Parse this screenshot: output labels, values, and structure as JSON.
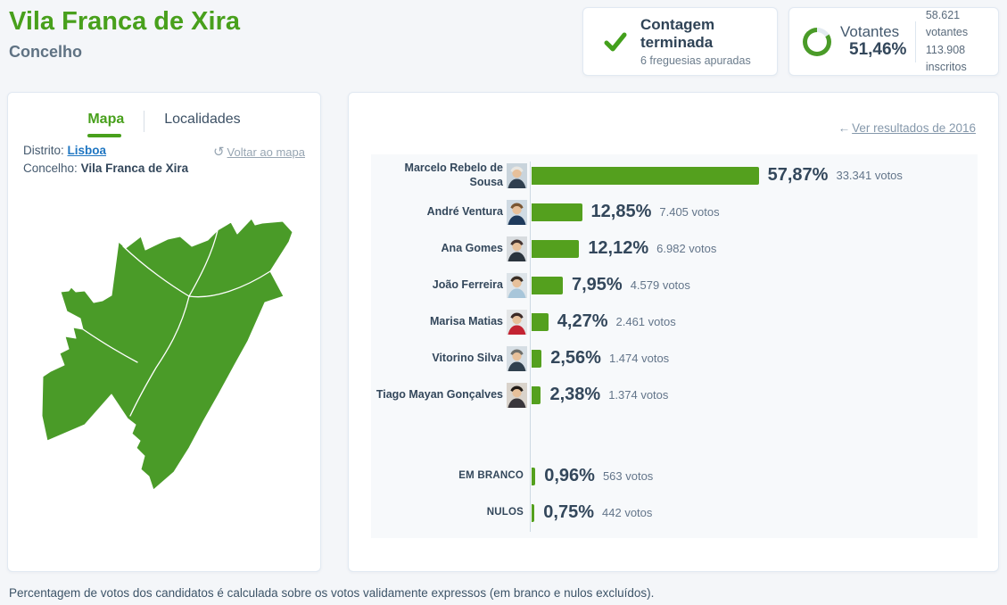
{
  "header": {
    "title": "Vila Franca de Xira",
    "subtitle": "Concelho"
  },
  "status_card": {
    "title": "Contagem terminada",
    "subtitle": "6 freguesias apuradas",
    "icon": "checkmark-icon"
  },
  "turnout_card": {
    "label": "Votantes",
    "percent_label": "51,46%",
    "percent_value": 51.46,
    "voters_line": "58.621 votantes",
    "registered_line": "113.908 inscritos"
  },
  "map_panel": {
    "tabs": [
      {
        "label": "Mapa",
        "active": true
      },
      {
        "label": "Localidades",
        "active": false
      }
    ],
    "district_label": "Distrito:",
    "district_value": "Lisboa",
    "council_label": "Concelho:",
    "council_value": "Vila Franca de Xira",
    "back_link": "Voltar ao mapa",
    "back_icon": "undo-arrow-icon"
  },
  "results_panel": {
    "back_link": "Ver resultados de 2016",
    "back_icon": "arrow-left-icon",
    "arrow_glyph": "←"
  },
  "chart_data": {
    "type": "bar",
    "orientation": "horizontal",
    "value_unit": "percent of valid votes",
    "bar_color": "#54a01e",
    "axis": "single vertical baseline, no gridlines",
    "series": [
      {
        "name": "Marcelo Rebelo de Sousa",
        "percent": 57.87,
        "percent_label": "57,87%",
        "votes": 33341,
        "votes_label": "33.341 votos",
        "photo": true,
        "avatar": {
          "bg": "#c9d4dc",
          "hair": "#e9e7e2",
          "suit": "#31404f"
        }
      },
      {
        "name": "André Ventura",
        "percent": 12.85,
        "percent_label": "12,85%",
        "votes": 7405,
        "votes_label": "7.405 votos",
        "photo": true,
        "avatar": {
          "bg": "#cfdae3",
          "hair": "#7a5633",
          "suit": "#1e3a5c"
        }
      },
      {
        "name": "Ana Gomes",
        "percent": 12.12,
        "percent_label": "12,12%",
        "votes": 6982,
        "votes_label": "6.982 votos",
        "photo": true,
        "avatar": {
          "bg": "#d8dcdf",
          "hair": "#463531",
          "suit": "#2a343d"
        }
      },
      {
        "name": "João Ferreira",
        "percent": 7.95,
        "percent_label": "7,95%",
        "votes": 4579,
        "votes_label": "4.579 votos",
        "photo": true,
        "avatar": {
          "bg": "#dde4e9",
          "hair": "#3a2e25",
          "suit": "#a8c6da"
        }
      },
      {
        "name": "Marisa Matias",
        "percent": 4.27,
        "percent_label": "4,27%",
        "votes": 2461,
        "votes_label": "2.461 votos",
        "photo": true,
        "avatar": {
          "bg": "#e4e6e7",
          "hair": "#3c2a26",
          "suit": "#c32332"
        }
      },
      {
        "name": "Vitorino Silva",
        "percent": 2.56,
        "percent_label": "2,56%",
        "votes": 1474,
        "votes_label": "1.474 votos",
        "photo": true,
        "avatar": {
          "bg": "#d6dee4",
          "hair": "#6e6e6a",
          "suit": "#30404e"
        }
      },
      {
        "name": "Tiago Mayan Gonçalves",
        "percent": 2.38,
        "percent_label": "2,38%",
        "votes": 1374,
        "votes_label": "1.374 votos",
        "photo": true,
        "avatar": {
          "bg": "#d9d3cb",
          "hair": "#221c17",
          "suit": "#39363b"
        }
      },
      {
        "name": "EM BRANCO",
        "percent": 0.96,
        "percent_label": "0,96%",
        "votes": 563,
        "votes_label": "563 votos",
        "photo": false,
        "gap_before": true
      },
      {
        "name": "NULOS",
        "percent": 0.75,
        "percent_label": "0,75%",
        "votes": 442,
        "votes_label": "442 votos",
        "photo": false
      }
    ]
  },
  "footer": {
    "note": "Percentagem de votos dos candidatos é calculada sobre os votos validamente expressos (em branco e nulos excluídos)."
  },
  "colors": {
    "accent_green": "#48a01c",
    "bar_green": "#54a01e",
    "map_green": "#4a9b28",
    "link_blue": "#1f76c2",
    "text_dark": "#33475b",
    "page_bg": "#f4f6f9"
  }
}
